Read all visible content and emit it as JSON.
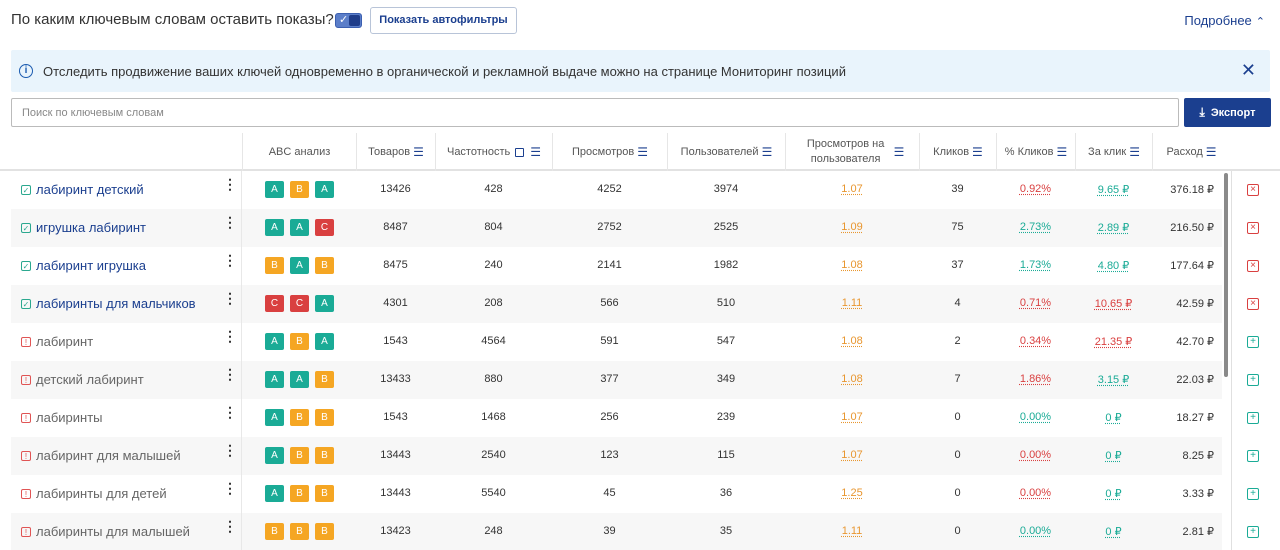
{
  "header": {
    "question": "По каким ключевым словам оставить показы?",
    "autofilter_button": "Показать автофильтры",
    "more_link": "Подробнее"
  },
  "info_banner": {
    "text": "Отследить продвижение ваших ключей одновременно в органической и рекламной выдаче можно на странице Мониторинг позиций"
  },
  "search": {
    "placeholder": "Поиск по ключевым словам"
  },
  "export_button": "Экспорт",
  "columns": {
    "abc": "ABC анализ",
    "goods": "Товаров",
    "frequency": "Частотность",
    "views": "Просмотров",
    "users": "Пользователей",
    "views_per_user": "Просмотров на пользователя",
    "clicks": "Кликов",
    "click_pct": "% Кликов",
    "per_click": "За клик",
    "spend": "Расход"
  },
  "rows": [
    {
      "keyword": "лабиринт детский",
      "active": true,
      "abc": [
        "A",
        "B",
        "A"
      ],
      "goods": "13426",
      "frequency": "428",
      "views": "4252",
      "users": "3974",
      "vpu": "1.07",
      "clicks": "39",
      "click_pct": "0.92%",
      "click_pct_color": "red",
      "per_click": "9.65 ₽",
      "per_click_color": "green",
      "spend": "376.18 ₽"
    },
    {
      "keyword": "игрушка лабиринт",
      "active": true,
      "abc": [
        "A",
        "A",
        "C"
      ],
      "goods": "8487",
      "frequency": "804",
      "views": "2752",
      "users": "2525",
      "vpu": "1.09",
      "clicks": "75",
      "click_pct": "2.73%",
      "click_pct_color": "green",
      "per_click": "2.89 ₽",
      "per_click_color": "green",
      "spend": "216.50 ₽"
    },
    {
      "keyword": "лабиринт игрушка",
      "active": true,
      "abc": [
        "B",
        "A",
        "B"
      ],
      "goods": "8475",
      "frequency": "240",
      "views": "2141",
      "users": "1982",
      "vpu": "1.08",
      "clicks": "37",
      "click_pct": "1.73%",
      "click_pct_color": "green",
      "per_click": "4.80 ₽",
      "per_click_color": "green",
      "spend": "177.64 ₽"
    },
    {
      "keyword": "лабиринты для мальчиков",
      "active": true,
      "abc": [
        "C",
        "C",
        "A"
      ],
      "goods": "4301",
      "frequency": "208",
      "views": "566",
      "users": "510",
      "vpu": "1.11",
      "clicks": "4",
      "click_pct": "0.71%",
      "click_pct_color": "red",
      "per_click": "10.65 ₽",
      "per_click_color": "red",
      "spend": "42.59 ₽"
    },
    {
      "keyword": "лабиринт",
      "active": false,
      "abc": [
        "A",
        "B",
        "A"
      ],
      "goods": "1543",
      "frequency": "4564",
      "views": "591",
      "users": "547",
      "vpu": "1.08",
      "clicks": "2",
      "click_pct": "0.34%",
      "click_pct_color": "red",
      "per_click": "21.35 ₽",
      "per_click_color": "red",
      "spend": "42.70 ₽"
    },
    {
      "keyword": "детский лабиринт",
      "active": false,
      "abc": [
        "A",
        "A",
        "B"
      ],
      "goods": "13433",
      "frequency": "880",
      "views": "377",
      "users": "349",
      "vpu": "1.08",
      "clicks": "7",
      "click_pct": "1.86%",
      "click_pct_color": "red",
      "per_click": "3.15 ₽",
      "per_click_color": "green",
      "spend": "22.03 ₽"
    },
    {
      "keyword": "лабиринты",
      "active": false,
      "abc": [
        "A",
        "B",
        "B"
      ],
      "goods": "1543",
      "frequency": "1468",
      "views": "256",
      "users": "239",
      "vpu": "1.07",
      "clicks": "0",
      "click_pct": "0.00%",
      "click_pct_color": "green",
      "per_click": "0 ₽",
      "per_click_color": "green",
      "spend": "18.27 ₽"
    },
    {
      "keyword": "лабиринт для малышей",
      "active": false,
      "abc": [
        "A",
        "B",
        "B"
      ],
      "goods": "13443",
      "frequency": "2540",
      "views": "123",
      "users": "115",
      "vpu": "1.07",
      "clicks": "0",
      "click_pct": "0.00%",
      "click_pct_color": "red",
      "per_click": "0 ₽",
      "per_click_color": "green",
      "spend": "8.25 ₽"
    },
    {
      "keyword": "лабиринты для детей",
      "active": false,
      "abc": [
        "A",
        "B",
        "B"
      ],
      "goods": "13443",
      "frequency": "5540",
      "views": "45",
      "users": "36",
      "vpu": "1.25",
      "clicks": "0",
      "click_pct": "0.00%",
      "click_pct_color": "red",
      "per_click": "0 ₽",
      "per_click_color": "green",
      "spend": "3.33 ₽"
    },
    {
      "keyword": "лабиринты для малышей",
      "active": false,
      "abc": [
        "B",
        "B",
        "B"
      ],
      "goods": "13423",
      "frequency": "248",
      "views": "39",
      "users": "35",
      "vpu": "1.11",
      "clicks": "0",
      "click_pct": "0.00%",
      "click_pct_color": "green",
      "per_click": "0 ₽",
      "per_click_color": "green",
      "spend": "2.81 ₽"
    }
  ],
  "colors": {
    "brand": "#1b3f8f",
    "badge_a": "#1aab96",
    "badge_b": "#f5a623",
    "badge_c": "#d94040",
    "info_bg": "#e9f4fc"
  },
  "icons": {
    "info": "info-icon",
    "close": "close-icon",
    "export": "download-icon",
    "sort": "sort-icon",
    "active": "checkbox-checked-icon",
    "inactive": "checkbox-excluded-icon",
    "remove": "remove-icon",
    "add": "add-icon"
  }
}
